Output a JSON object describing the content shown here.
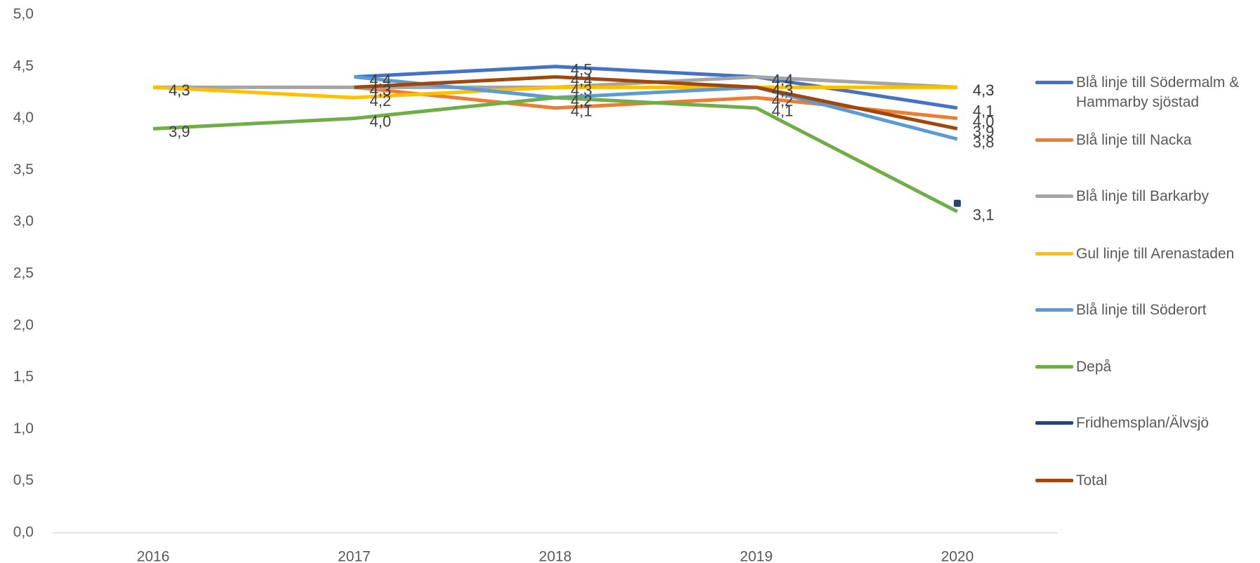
{
  "chart_data": {
    "type": "line",
    "categories": [
      "2016",
      "2017",
      "2018",
      "2019",
      "2020"
    ],
    "ylim": [
      0,
      5
    ],
    "yticks": [
      {
        "value": 0,
        "label": "0,0"
      },
      {
        "value": 0.5,
        "label": "0,5"
      },
      {
        "value": 1,
        "label": "1,0"
      },
      {
        "value": 1.5,
        "label": "1,5"
      },
      {
        "value": 2,
        "label": "2,0"
      },
      {
        "value": 2.5,
        "label": "2,5"
      },
      {
        "value": 3,
        "label": "3,0"
      },
      {
        "value": 3.5,
        "label": "3,5"
      },
      {
        "value": 4,
        "label": "4,0"
      },
      {
        "value": 4.5,
        "label": "4,5"
      },
      {
        "value": 5,
        "label": "5,0"
      }
    ],
    "grid": false,
    "legend": "right",
    "series": [
      {
        "name": "Blå linje till Södermalm & Hammarby sjöstad",
        "color": "#4472c4",
        "values": [
          null,
          4.4,
          4.5,
          4.4,
          4.1
        ],
        "value_labels": [
          null,
          "4,4",
          "4,5",
          "4,4",
          "4,1"
        ]
      },
      {
        "name": "Blå linje till Nacka",
        "color": "#ed7d31",
        "values": [
          null,
          4.3,
          4.1,
          4.2,
          4.0
        ],
        "value_labels": [
          null,
          "4,3",
          "4,1",
          "4,2",
          "4,0"
        ]
      },
      {
        "name": "Blå linje till Barkarby",
        "color": "#a5a5a5",
        "values": [
          4.3,
          4.3,
          4.3,
          4.4,
          4.3
        ],
        "value_labels": [
          "4,3",
          "4,3",
          "4,3",
          "4,4",
          "4,3"
        ]
      },
      {
        "name": "Gul linje till Arenastaden",
        "color": "#ffc000",
        "values": [
          4.3,
          4.2,
          4.3,
          4.3,
          4.3
        ],
        "value_labels": [
          "4,3",
          "4,2",
          "4,3",
          "4,3",
          "4,3"
        ]
      },
      {
        "name": "Blå linje till Söderort",
        "color": "#5b9bd5",
        "values": [
          null,
          4.4,
          4.2,
          4.3,
          3.8
        ],
        "value_labels": [
          null,
          "4,4",
          "4,2",
          "4,3",
          "3,8"
        ]
      },
      {
        "name": "Depå",
        "color": "#70ad47",
        "values": [
          3.9,
          4.0,
          4.2,
          4.1,
          3.1
        ],
        "value_labels": [
          "3,9",
          "4,0",
          "4,2",
          "4,1",
          "3,1"
        ]
      },
      {
        "name": "Fridhemsplan/Älvsjö",
        "color": "#264478",
        "values": [
          null,
          null,
          null,
          null,
          3.18
        ]
      },
      {
        "name": "Total",
        "color": "#9e480e",
        "values": [
          null,
          4.3,
          4.4,
          4.3,
          3.9
        ],
        "value_labels": [
          null,
          "4,3",
          "4,4",
          "4,3",
          "3,9"
        ]
      }
    ]
  }
}
